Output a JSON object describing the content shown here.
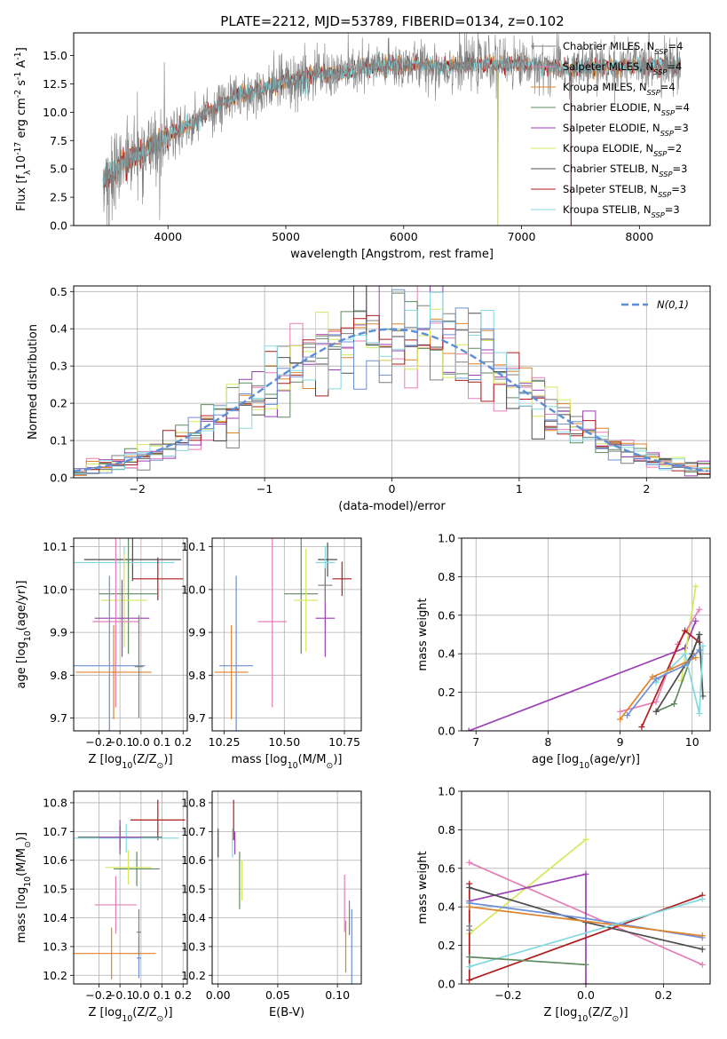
{
  "figure": {
    "title": "PLATE=2212, MJD=53789, FIBERID=0134, z=0.102"
  },
  "colors": {
    "chabrier_miles": "#7f7f7f",
    "salpeter_miles": "#e57fb5",
    "kroupa_miles": "#e0832a",
    "chabrier_elodie": "#5f8a5f",
    "salpeter_elodie": "#9b3fb5",
    "kroupa_elodie": "#d6e85a",
    "chabrier_stelib": "#4d4d4d",
    "salpeter_stelib": "#b01c1c",
    "kroupa_stelib": "#84d9e0",
    "extra_blue": "#6d8fd6",
    "gauss": "#5b8ed6"
  },
  "chart_data": [
    {
      "id": "spectrum",
      "type": "line",
      "xlabel": "wavelength [Angstrom, rest frame]",
      "ylabel": "Flux [f$_\\lambda$10$^{-17}$ erg cm$^{-2}$ s$^{-1}$ A$^{-1}$]",
      "xlim": [
        3200,
        8600
      ],
      "ylim": [
        0,
        17
      ],
      "xticks": [
        "4000",
        "5000",
        "6000",
        "7000",
        "8000"
      ],
      "yticks": [
        "0.0",
        "2.5",
        "5.0",
        "7.5",
        "10.0",
        "12.5",
        "15.0"
      ],
      "legend_placement": "upper right",
      "grid": false,
      "legend": [
        "Chabrier MILES, N$_{SSP}$=4",
        "Salpeter MILES, N$_{SSP}$=4",
        "Kroupa MILES, N$_{SSP}$=4",
        "Chabrier ELODIE, N$_{SSP}$=4",
        "Salpeter ELODIE, N$_{SSP}$=3",
        "Kroupa ELODIE, N$_{SSP}$=2",
        "Chabrier STELIB, N$_{SSP}$=3",
        "Salpeter STELIB, N$_{SSP}$=3",
        "Kroupa STELIB, N$_{SSP}$=3"
      ],
      "continuum": {
        "x": [
          3450,
          3600,
          3800,
          4000,
          4200,
          4400,
          4600,
          4800,
          5000,
          5200,
          5500,
          5800,
          6000,
          6300,
          6600,
          7000,
          7400,
          7800,
          8200,
          8350
        ],
        "y": [
          4.0,
          5.5,
          6.5,
          8.0,
          9.0,
          10.5,
          11.5,
          12.0,
          12.8,
          13.2,
          13.5,
          14.0,
          14.2,
          14.0,
          14.2,
          14.3,
          13.8,
          14.0,
          14.2,
          14.0
        ]
      },
      "dips": [
        {
          "x": 3500,
          "y": 0
        },
        {
          "x": 3930,
          "y": 0.5
        },
        {
          "x": 6800,
          "y": 0
        },
        {
          "x": 7420,
          "y": 0
        }
      ]
    },
    {
      "id": "residuals",
      "type": "line",
      "xlabel": "(data-model)/error",
      "ylabel": "Normed distribution",
      "xlim": [
        -2.5,
        2.5
      ],
      "ylim": [
        0,
        0.515
      ],
      "xticks": [
        "−2",
        "−1",
        "0",
        "1",
        "2"
      ],
      "yticks": [
        "0.0",
        "0.1",
        "0.2",
        "0.3",
        "0.4",
        "0.5"
      ],
      "legend": [
        "$\\mathcal{N}(0,1)$"
      ],
      "legend_placement": "upper right",
      "grid": true,
      "hist_bin_width": 0.1
    },
    {
      "id": "age_vs_Z",
      "type": "scatter",
      "xlabel": "Z [log$_{10}$(Z/Z$_\\odot$)]",
      "ylabel": "age  [log$_{10}$(age/yr)]",
      "xlim": [
        -0.32,
        0.22
      ],
      "ylim": [
        9.67,
        10.12
      ],
      "xticks": [
        "−0.2",
        "−0.1",
        "0.0",
        "0.1",
        "0.2"
      ],
      "yticks": [
        "9.7",
        "9.8",
        "9.9",
        "10.0",
        "10.1"
      ],
      "grid": true,
      "points": [
        {
          "c": "chabrier_stelib",
          "x": -0.04,
          "xerr": 0.23,
          "y": 10.07,
          "yerr": 0.05
        },
        {
          "c": "kroupa_stelib",
          "x": -0.08,
          "xerr": 0.24,
          "y": 10.063,
          "yerr": 0.04
        },
        {
          "c": "salpeter_stelib",
          "x": 0.08,
          "xerr": 0.12,
          "y": 10.025,
          "yerr": 0.05
        },
        {
          "c": "chabrier_elodie",
          "x": -0.06,
          "xerr": 0.14,
          "y": 9.99,
          "yerr": 0.14
        },
        {
          "c": "kroupa_elodie",
          "x": -0.08,
          "xerr": 0.11,
          "y": 9.975,
          "yerr": 0.11
        },
        {
          "c": "salpeter_elodie",
          "x": -0.09,
          "xerr": 0.13,
          "y": 9.933,
          "yerr": 0.09
        },
        {
          "c": "salpeter_miles",
          "x": -0.12,
          "xerr": 0.11,
          "y": 9.925,
          "yerr": 0.2
        },
        {
          "c": "extra_blue",
          "x": -0.15,
          "xerr": 0.17,
          "y": 9.822,
          "yerr": 0.21
        },
        {
          "c": "kroupa_miles",
          "x": -0.13,
          "xerr": 0.18,
          "y": 9.807,
          "yerr": 0.11
        },
        {
          "c": "chabrier_miles",
          "x": -0.01,
          "xerr": 0.02,
          "y": 9.82,
          "yerr": 0.12
        }
      ]
    },
    {
      "id": "age_vs_mass",
      "type": "scatter",
      "xlabel": "mass [log$_{10}$(M/M$_\\odot$)]",
      "ylabel": "",
      "xlim": [
        10.2,
        10.82
      ],
      "ylim": [
        9.67,
        10.12
      ],
      "xticks": [
        "10.25",
        "10.50",
        "10.75"
      ],
      "yticks": [
        "9.7",
        "9.8",
        "9.9",
        "10.0",
        "10.1"
      ],
      "grid": true,
      "points": [
        {
          "c": "chabrier_stelib",
          "x": 10.68,
          "xerr": 0.04,
          "y": 10.07,
          "yerr": 0.04
        },
        {
          "c": "kroupa_stelib",
          "x": 10.67,
          "xerr": 0.04,
          "y": 10.063,
          "yerr": 0.04
        },
        {
          "c": "salpeter_stelib",
          "x": 10.74,
          "xerr": 0.04,
          "y": 10.025,
          "yerr": 0.04
        },
        {
          "c": "chabrier_elodie",
          "x": 10.57,
          "xerr": 0.07,
          "y": 9.99,
          "yerr": 0.14
        },
        {
          "c": "kroupa_elodie",
          "x": 10.59,
          "xerr": 0.05,
          "y": 9.975,
          "yerr": 0.12
        },
        {
          "c": "salpeter_elodie",
          "x": 10.67,
          "xerr": 0.04,
          "y": 9.933,
          "yerr": 0.09
        },
        {
          "c": "salpeter_miles",
          "x": 10.45,
          "xerr": 0.06,
          "y": 9.925,
          "yerr": 0.2
        },
        {
          "c": "extra_blue",
          "x": 10.3,
          "xerr": 0.07,
          "y": 9.822,
          "yerr": 0.21
        },
        {
          "c": "kroupa_miles",
          "x": 10.28,
          "xerr": 0.07,
          "y": 9.807,
          "yerr": 0.11
        },
        {
          "c": "chabrier_miles",
          "x": 10.67,
          "xerr": 0.03,
          "y": 10.01,
          "yerr": 0.04
        }
      ]
    },
    {
      "id": "weight_vs_age",
      "type": "line",
      "xlabel": "age  [log$_{10}$(age/yr)]",
      "ylabel": "mass weight",
      "xlim": [
        6.8,
        10.25
      ],
      "ylim": [
        0,
        1
      ],
      "xticks": [
        "7",
        "8",
        "9",
        "10"
      ],
      "yticks": [
        "0.0",
        "0.2",
        "0.4",
        "0.6",
        "0.8",
        "1.0"
      ],
      "grid": true,
      "series": [
        {
          "c": "salpeter_elodie",
          "x": [
            6.9,
            9.9,
            10.05
          ],
          "y": [
            0.0,
            0.43,
            0.57
          ]
        },
        {
          "c": "kroupa_elodie",
          "x": [
            9.85,
            10.05
          ],
          "y": [
            0.26,
            0.75
          ]
        },
        {
          "c": "salpeter_miles",
          "x": [
            9.0,
            9.5,
            9.8,
            10.1
          ],
          "y": [
            0.1,
            0.15,
            0.45,
            0.63
          ]
        },
        {
          "c": "salpeter_stelib",
          "x": [
            9.3,
            9.9,
            10.1
          ],
          "y": [
            0.02,
            0.52,
            0.46
          ]
        },
        {
          "c": "chabrier_elodie",
          "x": [
            9.5,
            9.75,
            10.1
          ],
          "y": [
            0.1,
            0.14,
            0.5
          ]
        },
        {
          "c": "chabrier_stelib",
          "x": [
            9.5,
            10.0,
            10.1,
            10.15
          ],
          "y": [
            0.1,
            0.4,
            0.5,
            0.18
          ]
        },
        {
          "c": "kroupa_stelib",
          "x": [
            9.5,
            9.9,
            10.1,
            10.15
          ],
          "y": [
            0.25,
            0.4,
            0.09,
            0.44
          ]
        },
        {
          "c": "kroupa_miles",
          "x": [
            9.0,
            9.45,
            9.7,
            10.05
          ],
          "y": [
            0.06,
            0.28,
            0.32,
            0.38
          ]
        },
        {
          "c": "extra_blue",
          "x": [
            9.1,
            9.5,
            9.9,
            10.1
          ],
          "y": [
            0.08,
            0.27,
            0.34,
            0.42
          ]
        }
      ]
    },
    {
      "id": "mass_vs_Z",
      "type": "scatter",
      "xlabel": "Z [log$_{10}$(Z/Z$_\\odot$)]",
      "ylabel": "mass [log$_{10}$(M/M$_\\odot$)]",
      "xlim": [
        -0.32,
        0.22
      ],
      "ylim": [
        10.17,
        10.84
      ],
      "xticks": [
        "−0.2",
        "−0.1",
        "0.0",
        "0.1",
        "0.2"
      ],
      "yticks": [
        "10.2",
        "10.3",
        "10.4",
        "10.5",
        "10.6",
        "10.7",
        "10.8"
      ],
      "grid": true,
      "points": [
        {
          "c": "salpeter_stelib",
          "x": 0.08,
          "xerr": 0.13,
          "y": 10.74,
          "yerr": 0.07
        },
        {
          "c": "chabrier_stelib",
          "x": -0.1,
          "xerr": 0.2,
          "y": 10.68,
          "yerr": 0.04
        },
        {
          "c": "kroupa_stelib",
          "x": -0.07,
          "xerr": 0.25,
          "y": 10.677,
          "yerr": 0.05
        },
        {
          "c": "salpeter_elodie",
          "x": -0.1,
          "xerr": 0.1,
          "y": 10.68,
          "yerr": 0.06
        },
        {
          "c": "chabrier_elodie",
          "x": -0.02,
          "xerr": 0.11,
          "y": 10.57,
          "yerr": 0.06
        },
        {
          "c": "kroupa_elodie",
          "x": -0.06,
          "xerr": 0.11,
          "y": 10.575,
          "yerr": 0.06
        },
        {
          "c": "salpeter_miles",
          "x": -0.12,
          "xerr": 0.1,
          "y": 10.445,
          "yerr": 0.1
        },
        {
          "c": "kroupa_miles",
          "x": -0.14,
          "xerr": 0.21,
          "y": 10.276,
          "yerr": 0.09
        },
        {
          "c": "extra_blue",
          "x": -0.01,
          "xerr": 0.01,
          "y": 10.26,
          "yerr": 0.07
        },
        {
          "c": "chabrier_miles",
          "x": -0.01,
          "xerr": 0.01,
          "y": 10.35,
          "yerr": 0.08
        }
      ]
    },
    {
      "id": "mass_vs_ebv",
      "type": "scatter",
      "xlabel": "E(B-V)",
      "ylabel": "",
      "xlim": [
        -0.005,
        0.12
      ],
      "ylim": [
        10.17,
        10.84
      ],
      "xticks": [
        "0.00",
        "0.05",
        "0.10"
      ],
      "yticks": [
        "10.2",
        "10.3",
        "10.4",
        "10.5",
        "10.6",
        "10.7",
        "10.8"
      ],
      "grid": true,
      "points": [
        {
          "c": "salpeter_stelib",
          "x": 0.013,
          "xerr": 0.0,
          "y": 10.74,
          "yerr": 0.07
        },
        {
          "c": "chabrier_stelib",
          "x": 0.0,
          "xerr": 0.0,
          "y": 10.66,
          "yerr": 0.05
        },
        {
          "c": "kroupa_stelib",
          "x": 0.012,
          "xerr": 0.0,
          "y": 10.66,
          "yerr": 0.05
        },
        {
          "c": "salpeter_elodie",
          "x": 0.014,
          "xerr": 0.0,
          "y": 10.66,
          "yerr": 0.04
        },
        {
          "c": "chabrier_elodie",
          "x": 0.018,
          "xerr": 0.0,
          "y": 10.53,
          "yerr": 0.1
        },
        {
          "c": "kroupa_elodie",
          "x": 0.02,
          "xerr": 0.0,
          "y": 10.53,
          "yerr": 0.07
        },
        {
          "c": "salpeter_miles",
          "x": 0.106,
          "xerr": 0.0,
          "y": 10.45,
          "yerr": 0.1
        },
        {
          "c": "kroupa_miles",
          "x": 0.107,
          "xerr": 0.0,
          "y": 10.3,
          "yerr": 0.09
        },
        {
          "c": "extra_blue",
          "x": 0.112,
          "xerr": 0.0,
          "y": 10.3,
          "yerr": 0.13
        },
        {
          "c": "chabrier_miles",
          "x": 0.11,
          "xerr": 0.0,
          "y": 10.4,
          "yerr": 0.06
        }
      ]
    },
    {
      "id": "weight_vs_Z",
      "type": "line",
      "xlabel": "Z [log$_{10}$(Z/Z$_\\odot$)]",
      "ylabel": "mass weight",
      "xlim": [
        -0.32,
        0.32
      ],
      "ylim": [
        0,
        1
      ],
      "xticks": [
        "−0.2",
        "0.0",
        "0.2"
      ],
      "yticks": [
        "0.0",
        "0.2",
        "0.4",
        "0.6",
        "0.8",
        "1.0"
      ],
      "grid": true,
      "series": [
        {
          "c": "kroupa_elodie",
          "x": [
            -0.3,
            0.0
          ],
          "y": [
            0.26,
            0.75
          ]
        },
        {
          "c": "salpeter_miles",
          "x": [
            -0.3,
            0.3
          ],
          "y": [
            0.63,
            0.1
          ]
        },
        {
          "c": "salpeter_elodie",
          "x": [
            -0.3,
            0.0,
            0.0
          ],
          "y": [
            0.43,
            0.57,
            0.0
          ]
        },
        {
          "c": "salpeter_stelib",
          "x": [
            -0.3,
            -0.3,
            0.3
          ],
          "y": [
            0.52,
            0.02,
            0.46
          ]
        },
        {
          "c": "chabrier_stelib",
          "x": [
            -0.3,
            0.0,
            0.3
          ],
          "y": [
            0.5,
            0.32,
            0.18
          ]
        },
        {
          "c": "extra_blue",
          "x": [
            -0.3,
            0.0,
            0.3
          ],
          "y": [
            0.42,
            0.34,
            0.24
          ]
        },
        {
          "c": "kroupa_miles",
          "x": [
            -0.3,
            0.3
          ],
          "y": [
            0.4,
            0.25
          ]
        },
        {
          "c": "kroupa_stelib",
          "x": [
            -0.3,
            0.3
          ],
          "y": [
            0.09,
            0.44
          ]
        },
        {
          "c": "chabrier_elodie",
          "x": [
            -0.3,
            0.0
          ],
          "y": [
            0.14,
            0.1
          ]
        },
        {
          "c": "chabrier_miles",
          "x": [
            -0.3,
            -0.3
          ],
          "y": [
            0.3,
            0.28
          ]
        }
      ]
    }
  ]
}
